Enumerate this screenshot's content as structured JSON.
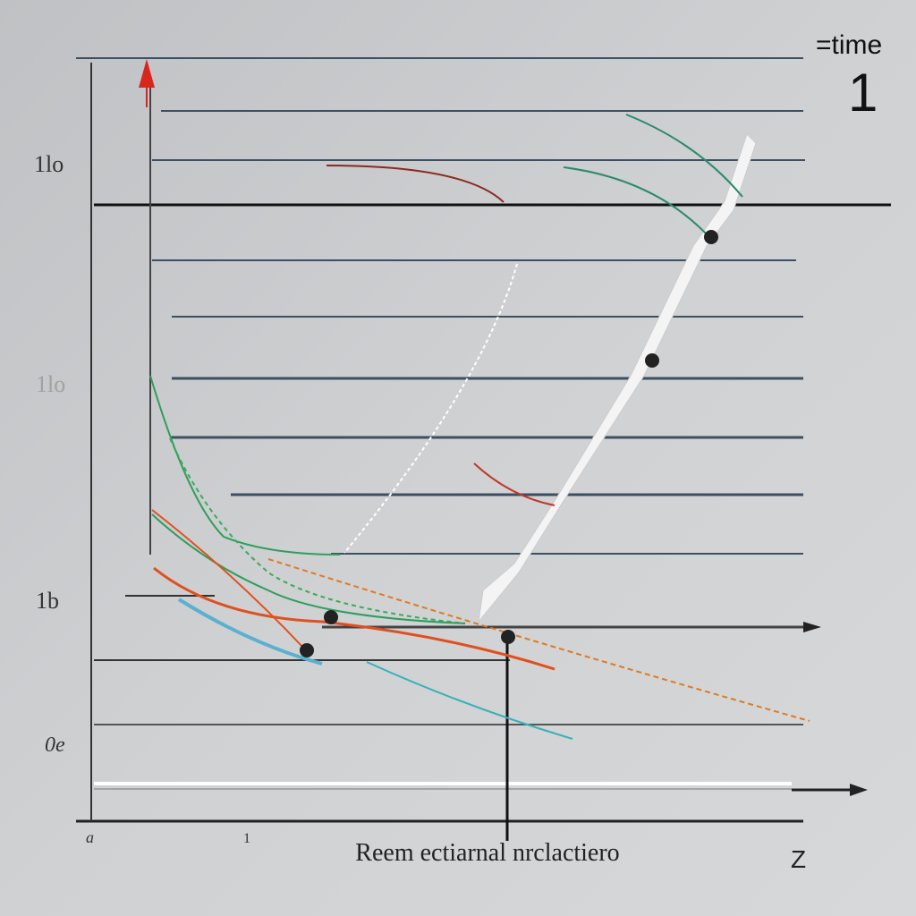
{
  "header": {
    "legend_label": "=time",
    "number": "1"
  },
  "y_labels": [
    "1lo",
    "1lo",
    "1b",
    "0e",
    "a"
  ],
  "x_labels": [
    "1",
    "Z"
  ],
  "x_axis_title": "Reem ectiarnal nrclactiero"
}
